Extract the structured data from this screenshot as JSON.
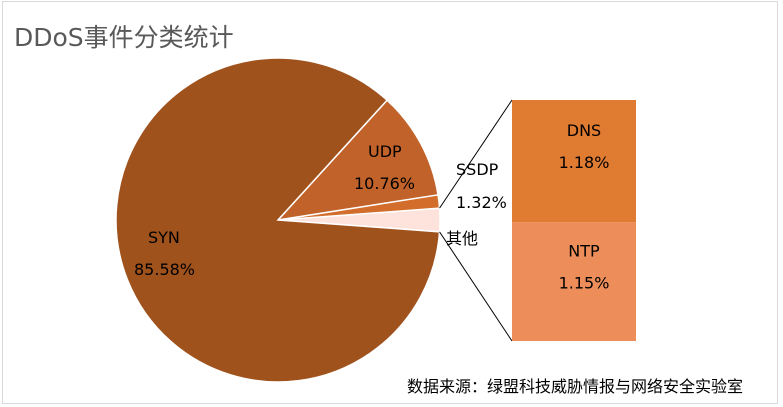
{
  "chart_data": {
    "type": "pie",
    "variant": "bar-of-pie",
    "title": "DDoS事件分类统计",
    "slices": [
      {
        "label": "SYN",
        "value": 85.58,
        "display": "85.58%",
        "color": "#a0521d"
      },
      {
        "label": "UDP",
        "value": 10.76,
        "display": "10.76%",
        "color": "#c0622a"
      },
      {
        "label": "SSDP",
        "value": 1.32,
        "display": "1.32%",
        "color": "#d36d2c"
      },
      {
        "label": "其他",
        "value": 2.33,
        "display": "",
        "color": "#fde3dc"
      }
    ],
    "secondary_bar": [
      {
        "label": "DNS",
        "value": 1.18,
        "display": "1.18%",
        "color": "#e07b32"
      },
      {
        "label": "NTP",
        "value": 1.15,
        "display": "1.15%",
        "color": "#ed8e5a"
      }
    ],
    "source_note": "数据来源：绿盟科技威胁情报与网络安全实验室"
  }
}
